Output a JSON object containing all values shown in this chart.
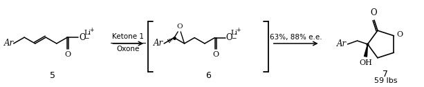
{
  "background_color": "#ffffff",
  "fig_width": 6.13,
  "fig_height": 1.26,
  "dpi": 100,
  "compound5_label": "5",
  "compound6_label": "6",
  "compound7_label": "7",
  "weight_label": "59 lbs",
  "reagents_line1": "Ketone 1",
  "reagents_line2": "Oxone",
  "yield_ee": "63%, 88% e.e.",
  "text_color": "#000000",
  "font_size_main": 8.5,
  "font_size_label": 9,
  "font_size_small": 7.5,
  "font_size_super": 5.5
}
